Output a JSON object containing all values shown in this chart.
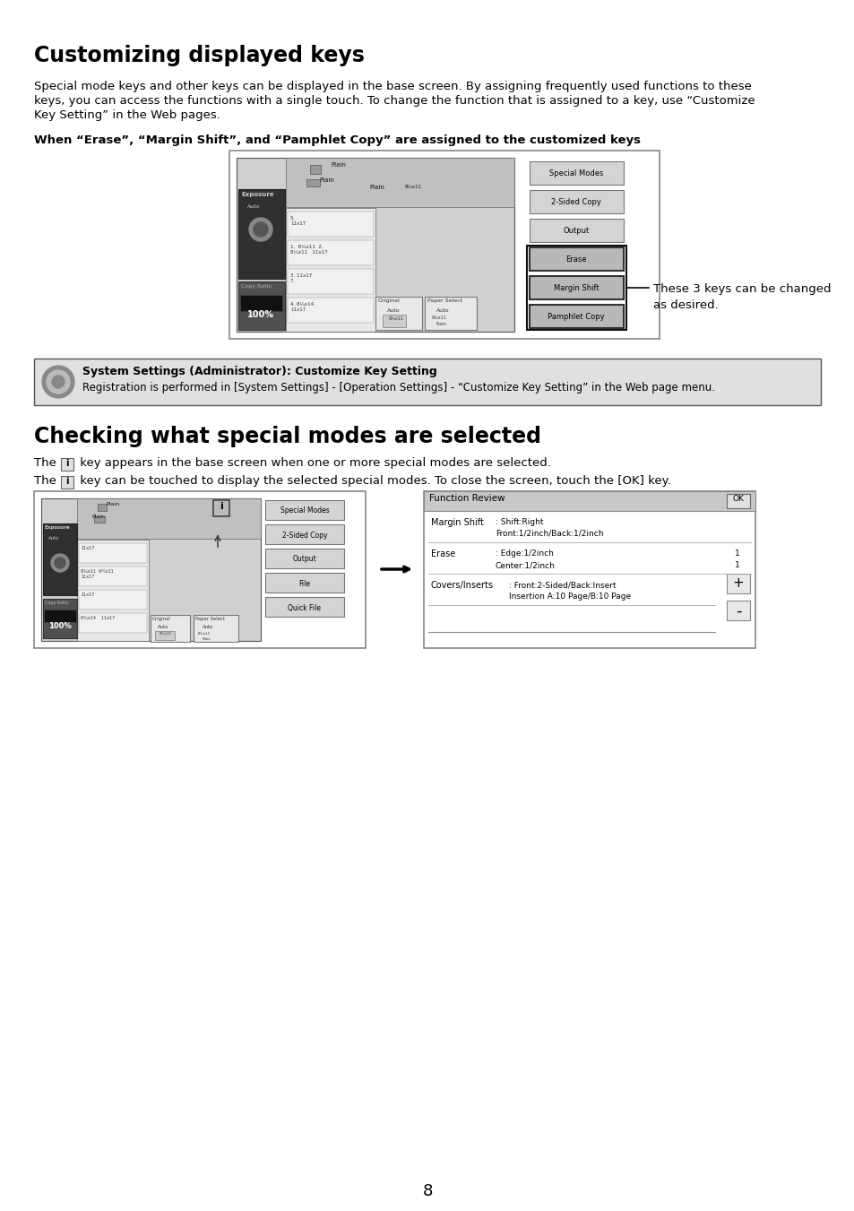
{
  "title1": "Customizing displayed keys",
  "body1_l1": "Special mode keys and other keys can be displayed in the base screen. By assigning frequently used functions to these",
  "body1_l2": "keys, you can access the functions with a single touch. To change the function that is assigned to a key, use “Customize",
  "body1_l3": "Key Setting” in the Web pages.",
  "subtitle1": "When “Erase”, “Margin Shift”, and “Pamphlet Copy” are assigned to the customized keys",
  "annotation1_l1": "These 3 keys can be changed",
  "annotation1_l2": "as desired.",
  "note_title": "System Settings (Administrator): Customize Key Setting",
  "note_body": "Registration is performed in [System Settings] - [Operation Settings] - “Customize Key Setting” in the Web page menu.",
  "title2": "Checking what special modes are selected",
  "body2_l1a": "The ",
  "body2_l1b": " key appears in the base screen when one or more special modes are selected.",
  "body2_l2a": "The ",
  "body2_l2b": " key can be touched to display the selected special modes. To close the screen, touch the [OK] key.",
  "page_number": "8",
  "bg_color": "#ffffff",
  "note_bg": "#e0e0e0",
  "btn_light": "#d4d4d4",
  "btn_dark": "#b8b8b8",
  "machine_body": "#c8c8c8",
  "machine_dark": "#404040",
  "tray_color": "#a8a8a8"
}
